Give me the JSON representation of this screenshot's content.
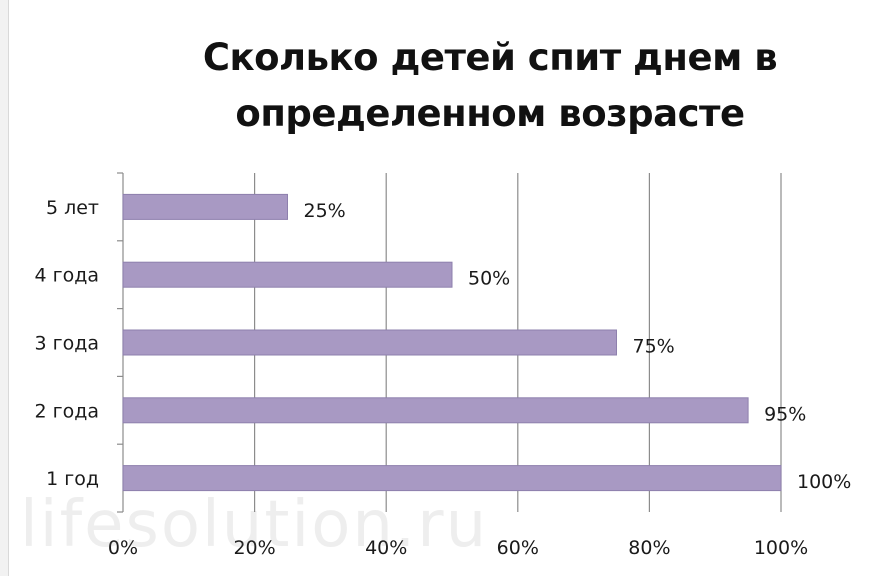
{
  "chart_data": {
    "type": "bar",
    "orientation": "horizontal",
    "title": "Сколько детей спит днем в определенном возрасте",
    "categories": [
      "5 лет",
      "4 года",
      "3 года",
      "2 года",
      "1 год"
    ],
    "values": [
      25,
      50,
      75,
      95,
      100
    ],
    "data_labels": [
      "25%",
      "50%",
      "75%",
      "95%",
      "100%"
    ],
    "x_ticks": [
      "0%",
      "20%",
      "40%",
      "60%",
      "80%",
      "100%"
    ],
    "xlim": [
      0,
      100
    ],
    "xlabel": "",
    "ylabel": "",
    "grid": "vertical",
    "legend": "none",
    "bar_color": "#a899c3",
    "bar_edge_color": "#8e80ad"
  },
  "watermark": "lifesolution.ru"
}
